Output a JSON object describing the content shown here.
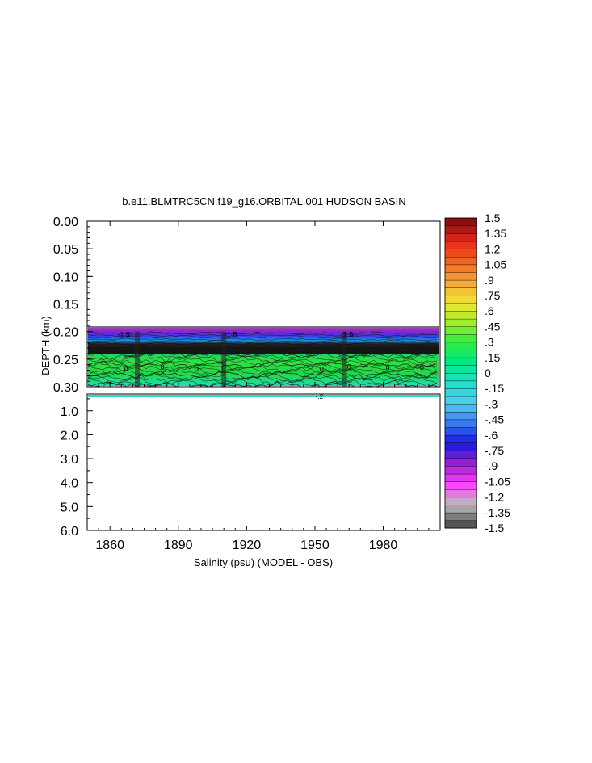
{
  "chart_data": {
    "type": "heatmap",
    "title": "b.e11.BLMTRC5CN.f19_g16.ORBITAL.001 HUDSON BASIN",
    "xlabel": "Salinity (psu) (MODEL - OBS)",
    "ylabel": "DEPTH (km)",
    "x_ticks": [
      "1860",
      "1890",
      "1920",
      "1950",
      "1980"
    ],
    "x_tick_values": [
      1860,
      1890,
      1920,
      1950,
      1980
    ],
    "xlim": [
      1850,
      2005
    ],
    "upper_panel": {
      "ylim": [
        0.0,
        0.3
      ],
      "y_ticks": [
        "0.00",
        "0.05",
        "0.10",
        "0.15",
        "0.20",
        "0.25",
        "0.30"
      ],
      "y_tick_values": [
        0.0,
        0.05,
        0.1,
        0.15,
        0.2,
        0.25,
        0.3
      ],
      "data_depth_range": [
        0.2,
        0.3
      ],
      "contour_labels": [
        "-1.5",
        "-1.5",
        "-1.5",
        "0",
        "0",
        "0",
        "0",
        "0",
        "0",
        "0",
        "0"
      ]
    },
    "lower_panel": {
      "ylim": [
        0.3,
        6.0
      ],
      "y_ticks": [
        "1.0",
        "2.0",
        "3.0",
        "4.0",
        "5.0",
        "6.0"
      ],
      "y_tick_values": [
        1.0,
        2.0,
        3.0,
        4.0,
        5.0,
        6.0
      ],
      "data_depth_range": [
        0.3,
        0.35
      ],
      "contour_labels": [
        "-.2"
      ]
    },
    "colorbar": {
      "labels": [
        "1.5",
        "1.35",
        "1.2",
        "1.05",
        ".9",
        ".75",
        ".6",
        ".45",
        ".3",
        ".15",
        "0",
        "-.15",
        "-.3",
        "-.45",
        "-.6",
        "-.75",
        "-.9",
        "-1.05",
        "-1.2",
        "-1.35",
        "-1.5"
      ],
      "min": -1.5,
      "max": 1.5,
      "colors": [
        "#555555",
        "#bdbdbd",
        "#ff40ff",
        "#a020d0",
        "#1818e0",
        "#3a78ee",
        "#50ccf0",
        "#1ee0c8",
        "#00e88a",
        "#2eea40",
        "#a0ee2a",
        "#f0e630",
        "#f4a63a",
        "#ee6a20",
        "#e82a18",
        "#8c1010"
      ]
    }
  }
}
